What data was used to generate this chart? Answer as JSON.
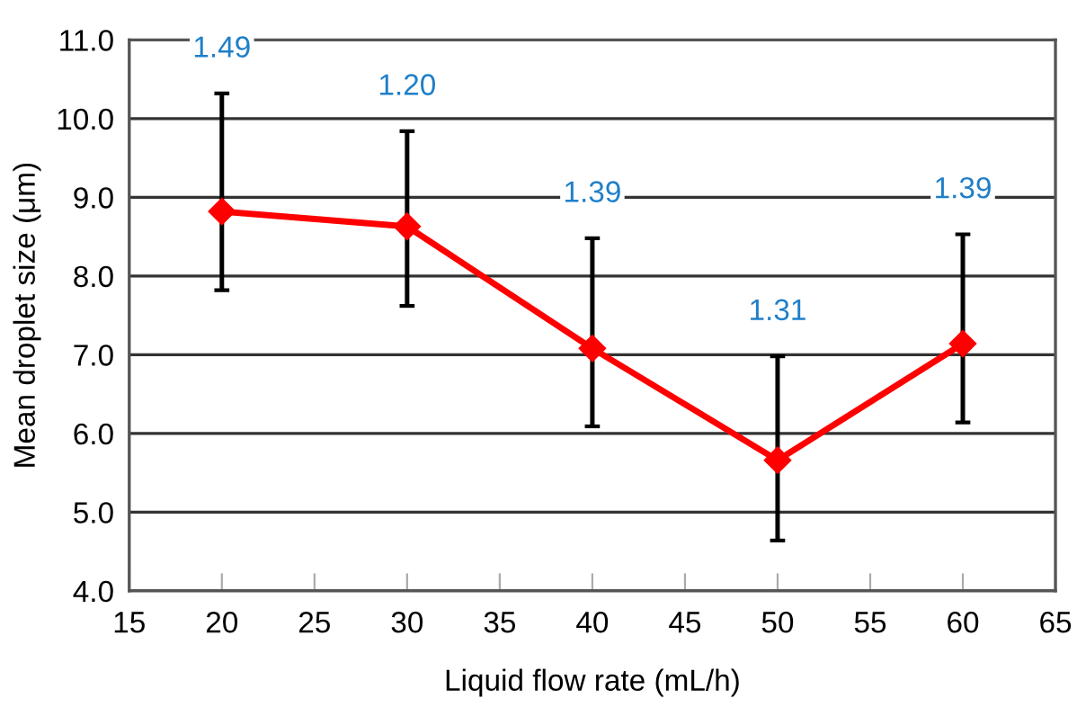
{
  "chart_data": {
    "type": "line",
    "xlabel": "Liquid flow rate (mL/h)",
    "ylabel": "Mean droplet size (μm)",
    "x": [
      20,
      30,
      40,
      50,
      60
    ],
    "series": [
      {
        "color": "#ff0000",
        "values": [
          8.82,
          8.63,
          7.08,
          5.66,
          7.14
        ],
        "errors": [
          [
            7.82,
            10.32
          ],
          [
            7.62,
            9.84
          ],
          [
            6.09,
            8.48
          ],
          [
            4.64,
            6.98
          ],
          [
            6.14,
            8.53
          ]
        ]
      }
    ],
    "annotations": [
      "1.49",
      "1.20",
      "1.39",
      "1.31",
      "1.39"
    ],
    "xlim": [
      15,
      65
    ],
    "xticks": [
      15,
      20,
      25,
      30,
      35,
      40,
      45,
      50,
      55,
      60,
      65
    ],
    "ylim": [
      4.0,
      11.0
    ],
    "yticks": [
      {
        "value": 4,
        "label": "4.0"
      },
      {
        "value": 5,
        "label": "5.0"
      },
      {
        "value": 6,
        "label": "6.0"
      },
      {
        "value": 7,
        "label": "7.0"
      },
      {
        "value": 8,
        "label": "8.0"
      },
      {
        "value": 9,
        "label": "9.0"
      },
      {
        "value": 10,
        "label": "10.0"
      },
      {
        "value": 11,
        "label": "11.0"
      }
    ],
    "grid": "y",
    "marker": "diamond",
    "line_style": "solid"
  }
}
